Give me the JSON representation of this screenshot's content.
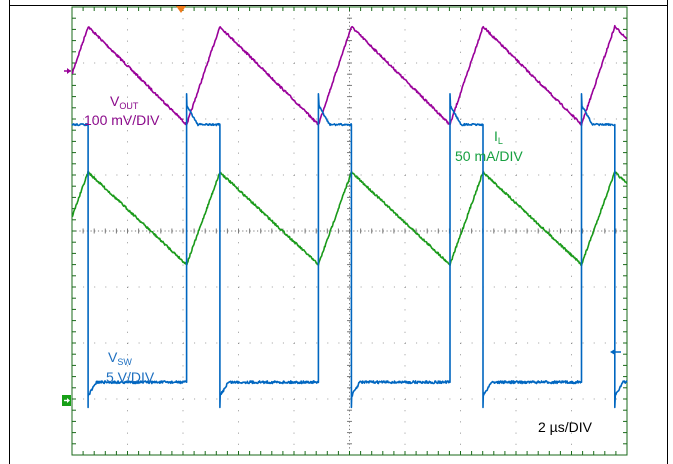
{
  "chart_data": {
    "type": "line",
    "title": "",
    "timebase": {
      "value": "2 µs",
      "unit": "/DIV",
      "label": "2 µs/DIV"
    },
    "divisions": {
      "x": 10,
      "y": 8
    },
    "grid": true,
    "x": {
      "unit": "µs",
      "range": [
        0,
        20
      ]
    },
    "series": [
      {
        "name": "VOUT",
        "label_main": "V",
        "label_sub": "OUT",
        "scale": "100 mV/DIV",
        "color": "#990099",
        "waveform": "triangle",
        "period_us": 4.74,
        "peak_times_us": [
          0.58,
          5.33,
          10.07,
          14.81,
          19.56
        ],
        "trough_times_us": [
          4.13,
          8.88,
          13.62,
          18.36
        ],
        "peak_div": 3.65,
        "trough_div": 1.9
      },
      {
        "name": "IL",
        "label_main": "I",
        "label_sub": "L",
        "scale": "50 mA/DIV",
        "color": "#1a9a1a",
        "waveform": "triangle",
        "period_us": 4.74,
        "peak_times_us": [
          0.58,
          5.33,
          10.07,
          14.81,
          19.56
        ],
        "trough_times_us": [
          4.13,
          8.88,
          13.62,
          18.36
        ],
        "peak_div": 1.05,
        "trough_div": -0.6
      },
      {
        "name": "VSW",
        "label_main": "V",
        "label_sub": "SW",
        "scale": "5 V/DIV",
        "color": "#0066c0",
        "waveform": "pulse",
        "period_us": 4.74,
        "rise_times_us": [
          4.13,
          8.88,
          13.62,
          18.36
        ],
        "fall_times_us": [
          0.58,
          5.33,
          10.07,
          14.81,
          19.56
        ],
        "high_div": 1.9,
        "low_div": -2.7
      }
    ]
  },
  "labels": {
    "vout_main": "V",
    "vout_sub": "OUT",
    "vout_scale": "100 mV/DIV",
    "il_main": "I",
    "il_sub": "L",
    "il_scale": "50 mA/DIV",
    "vsw_main": "V",
    "vsw_sub": "SW",
    "vsw_scale": "5 V/DIV",
    "timebase": "2 µs/DIV"
  },
  "colors": {
    "grid_border": "#1a6a1a",
    "grid_dots": "#7a7a7a",
    "trigger_marker": "#f07a1a",
    "ch_marker_green": "#16a016"
  }
}
